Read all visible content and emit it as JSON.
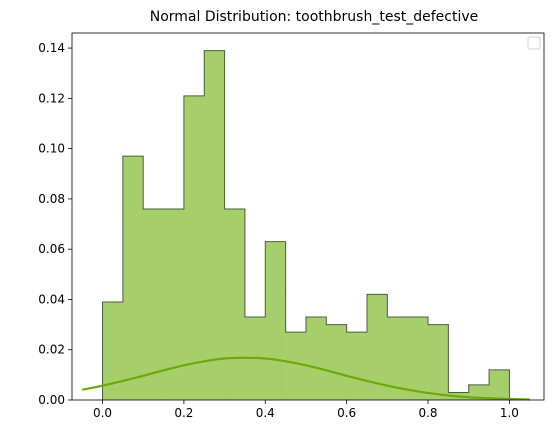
{
  "chart_data": {
    "type": "bar",
    "title": "Normal Distribution: toothbrush_test_defective",
    "xlabel": "",
    "ylabel": "",
    "xlim": [
      -0.075,
      1.085
    ],
    "ylim": [
      0,
      0.146
    ],
    "x_ticks": [
      0.0,
      0.2,
      0.4,
      0.6,
      0.8,
      1.0
    ],
    "x_tick_labels": [
      "0.0",
      "0.2",
      "0.4",
      "0.6",
      "0.8",
      "1.0"
    ],
    "y_ticks": [
      0.0,
      0.02,
      0.04,
      0.06,
      0.08,
      0.1,
      0.12,
      0.14
    ],
    "y_tick_labels": [
      "0.00",
      "0.02",
      "0.04",
      "0.06",
      "0.08",
      "0.10",
      "0.12",
      "0.14"
    ],
    "grid": false,
    "legend": {
      "position": "top-right",
      "entries": []
    },
    "bin_edges": [
      0.0,
      0.05,
      0.1,
      0.15,
      0.2,
      0.25,
      0.3,
      0.35,
      0.4,
      0.45,
      0.5,
      0.55,
      0.6,
      0.65,
      0.7,
      0.75,
      0.8,
      0.85,
      0.9,
      0.95,
      1.0
    ],
    "values": [
      0.039,
      0.097,
      0.076,
      0.076,
      0.121,
      0.139,
      0.076,
      0.033,
      0.063,
      0.027,
      0.033,
      0.03,
      0.027,
      0.042,
      0.033,
      0.033,
      0.03,
      0.003,
      0.006,
      0.012
    ],
    "curve": {
      "x": [
        -0.05,
        0.0,
        0.05,
        0.1,
        0.15,
        0.2,
        0.25,
        0.3,
        0.35,
        0.4,
        0.45,
        0.5,
        0.55,
        0.6,
        0.65,
        0.7,
        0.75,
        0.8,
        0.85,
        0.9,
        0.95,
        1.0,
        1.05
      ],
      "y": [
        0.0041,
        0.0057,
        0.0076,
        0.0096,
        0.0118,
        0.0138,
        0.0154,
        0.0165,
        0.0168,
        0.0165,
        0.0154,
        0.0138,
        0.0118,
        0.0096,
        0.0076,
        0.0057,
        0.0041,
        0.0028,
        0.0018,
        0.0011,
        0.0007,
        0.0004,
        0.0002
      ]
    },
    "colors": {
      "bar_fill": "#a6cf6b",
      "bar_edge": "#4d5e3e",
      "curve": "#6aaa0a"
    }
  }
}
